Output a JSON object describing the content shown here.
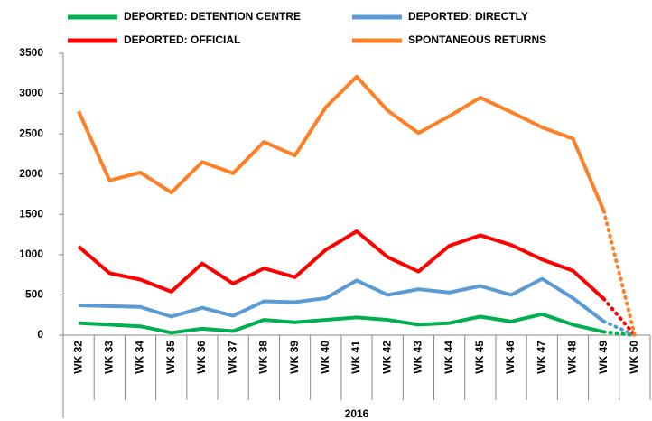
{
  "chart_data": {
    "type": "line",
    "x_label": "2016",
    "categories": [
      "WK 32",
      "WK 33",
      "WK 34",
      "WK 35",
      "WK 36",
      "WK 37",
      "WK 38",
      "WK 39",
      "WK 40",
      "WK 41",
      "WK 42",
      "WK 43",
      "WK 44",
      "WK 45",
      "WK 46",
      "WK 47",
      "WK 48",
      "WK 49",
      "WK 50"
    ],
    "series": [
      {
        "name": "DEPORTED: DETENTION CENTRE",
        "color": "#00b050",
        "values": [
          150,
          130,
          110,
          30,
          80,
          50,
          190,
          160,
          190,
          220,
          190,
          130,
          150,
          230,
          170,
          260,
          130,
          40,
          0
        ]
      },
      {
        "name": "DEPORTED: DIRECTLY",
        "color": "#5b9bd5",
        "values": [
          370,
          360,
          350,
          230,
          340,
          240,
          420,
          410,
          460,
          680,
          500,
          570,
          530,
          610,
          500,
          700,
          460,
          170,
          0
        ]
      },
      {
        "name": "DEPORTED: OFFICIAL",
        "color": "#ff0000",
        "values": [
          1100,
          770,
          690,
          540,
          890,
          640,
          830,
          720,
          1060,
          1290,
          970,
          790,
          1110,
          1240,
          1120,
          940,
          800,
          450,
          0
        ]
      },
      {
        "name": "SPONTANEOUS RETURNS",
        "color": "#ff7f27",
        "values": [
          2780,
          1920,
          2020,
          1770,
          2150,
          2010,
          2400,
          2230,
          2830,
          3210,
          2790,
          2510,
          2720,
          2950,
          2770,
          2580,
          2440,
          1540,
          0
        ]
      }
    ],
    "ylim": [
      0,
      3500
    ],
    "yticks": [
      0,
      500,
      1000,
      1500,
      2000,
      2500,
      3000,
      3500
    ],
    "grid": false,
    "legend": "top",
    "last_segment_dotted": true
  }
}
